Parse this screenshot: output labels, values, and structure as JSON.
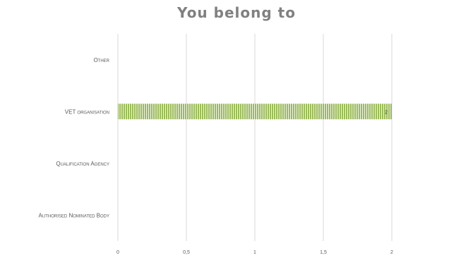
{
  "chart_data": {
    "type": "bar",
    "orientation": "horizontal",
    "title": "You belong to",
    "categories": [
      "Other",
      "VET organisation",
      "Qualification Agency",
      "Authorised Nominated Body"
    ],
    "values": [
      0,
      2,
      0,
      0
    ],
    "data_labels": [
      "",
      "2",
      "",
      ""
    ],
    "xlim": [
      0,
      2
    ],
    "x_ticks": [
      "0",
      "0,5",
      "1",
      "1,5",
      "2"
    ],
    "xlabel": "",
    "ylabel": "",
    "grid": true,
    "legend": "none",
    "colors": {
      "bar": "#9bbb59",
      "bar_stripe": "#f0f5e6",
      "grid": "#d9d9d9",
      "title": "#808080",
      "text": "#595959"
    }
  }
}
